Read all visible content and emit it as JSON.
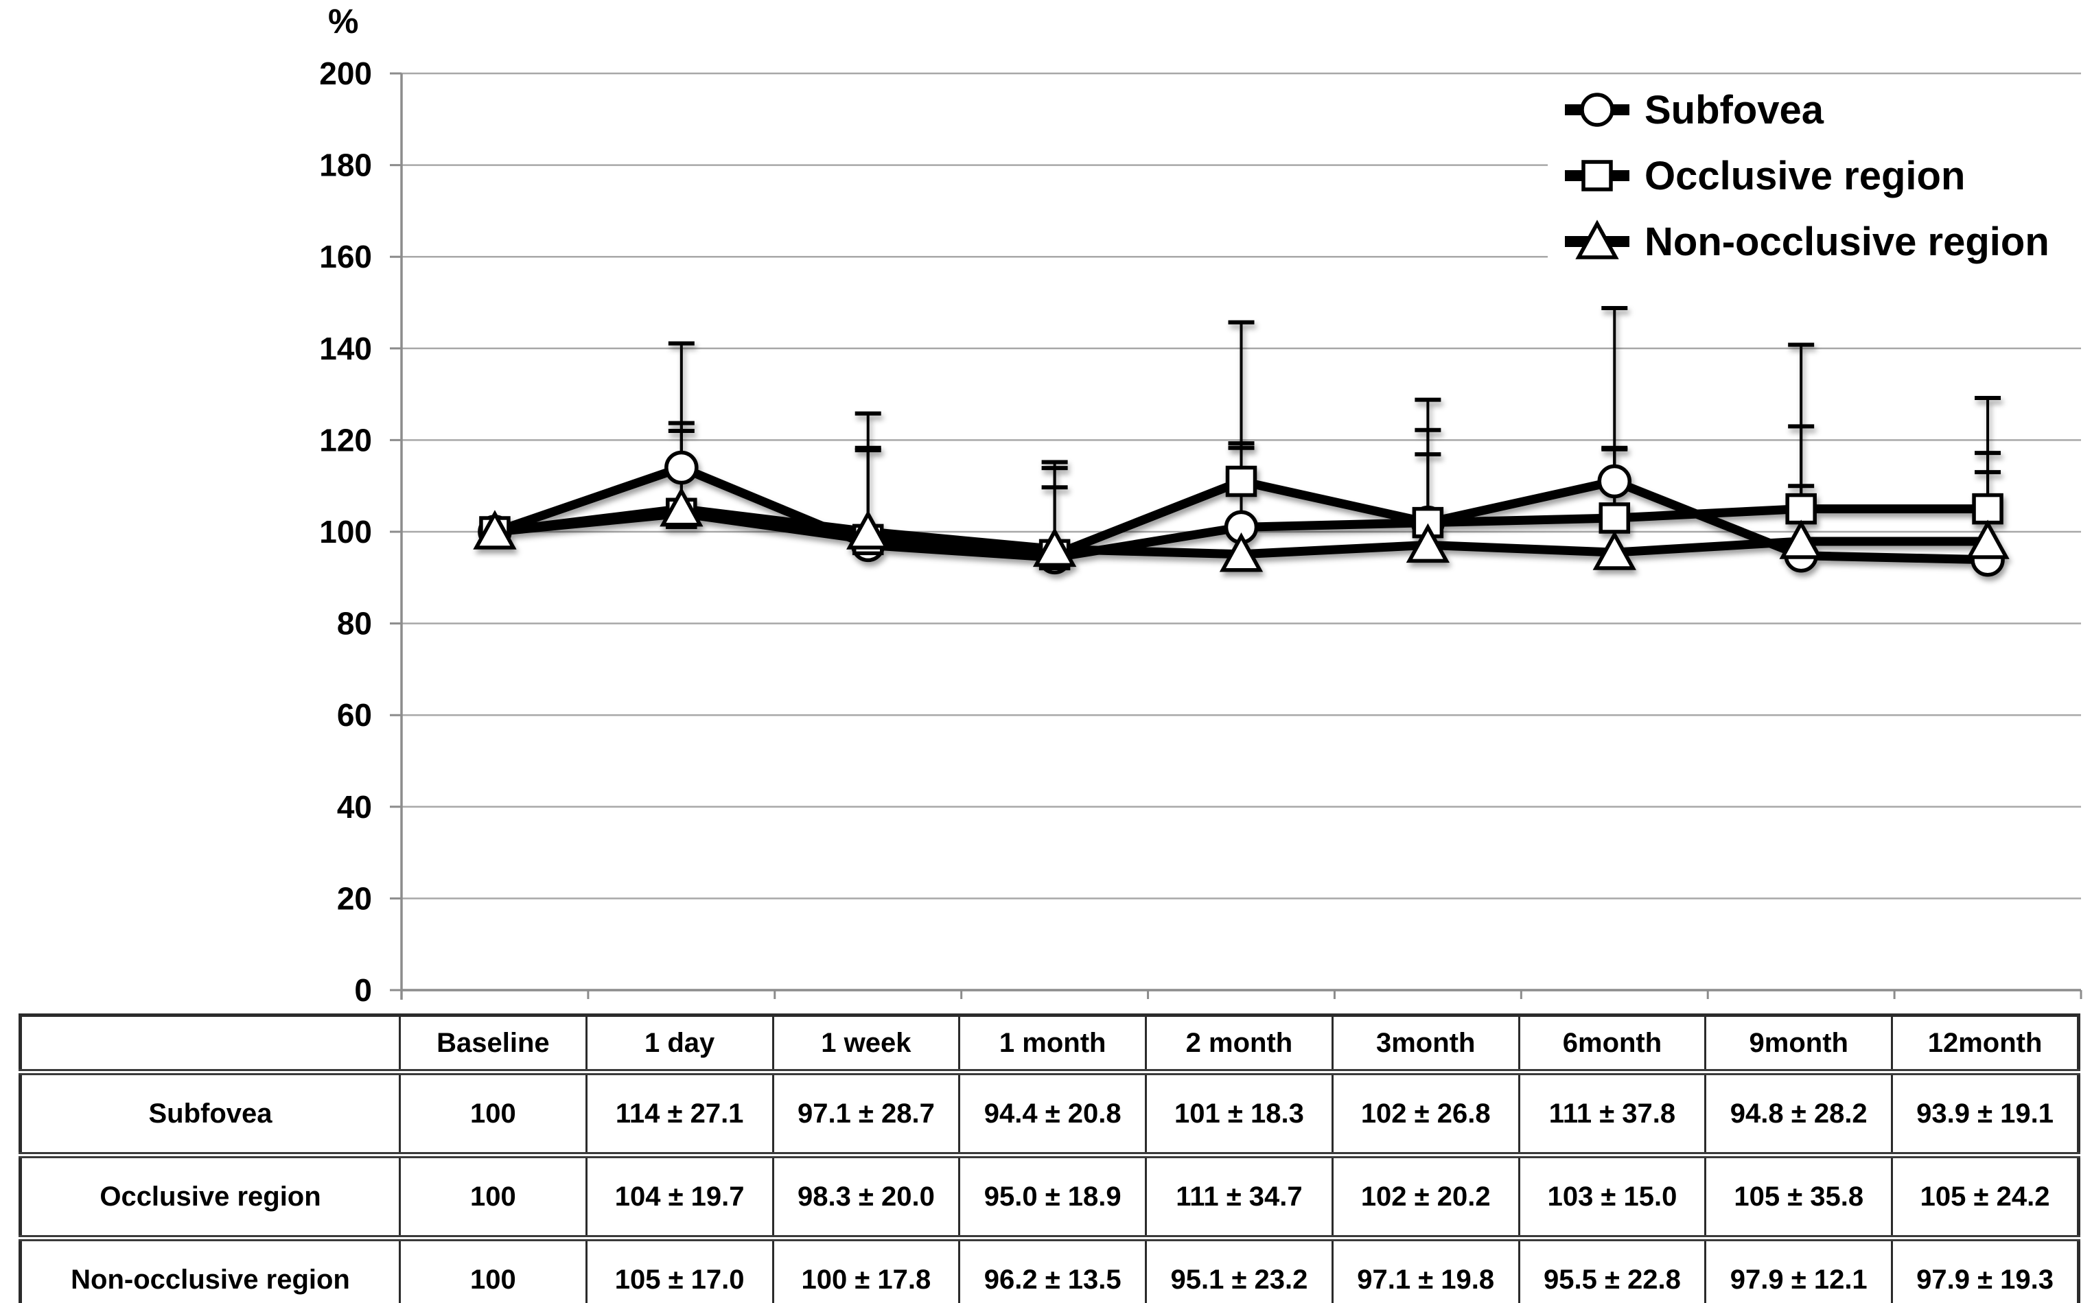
{
  "colors": {
    "background": "#ffffff",
    "line": "#000000",
    "marker_fill": "#ffffff",
    "grid": "#a8a8a8",
    "axis": "#8c8c8c",
    "text": "#000000"
  },
  "chart_data": {
    "type": "line",
    "title": "",
    "xlabel": "",
    "ylabel": "%",
    "ylim": [
      0,
      200
    ],
    "ytick_step": 20,
    "yticks": [
      0,
      20,
      40,
      60,
      80,
      100,
      120,
      140,
      160,
      180,
      200
    ],
    "grid": true,
    "error_bars": "upward, mean + SD, with caps",
    "legend_position": "top-right",
    "categories": [
      "Baseline",
      "1 day",
      "1 week",
      "1 month",
      "2 month",
      "3month",
      "6month",
      "9month",
      "12month"
    ],
    "series": [
      {
        "name": "Subfovea",
        "marker": "circle",
        "values": [
          100,
          114,
          97.1,
          94.4,
          101,
          102,
          111,
          94.8,
          93.9
        ],
        "sd": [
          0,
          27.1,
          28.7,
          20.8,
          18.3,
          26.8,
          37.8,
          28.2,
          19.1
        ]
      },
      {
        "name": "Occlusive region",
        "marker": "square",
        "values": [
          100,
          104,
          98.3,
          95.0,
          111,
          102,
          103,
          105,
          105
        ],
        "sd": [
          0,
          19.7,
          20.0,
          18.9,
          34.7,
          20.2,
          15.0,
          35.8,
          24.2
        ]
      },
      {
        "name": "Non-occlusive region",
        "marker": "triangle",
        "values": [
          100,
          105,
          100,
          96.2,
          95.1,
          97.1,
          95.5,
          97.9,
          97.9
        ],
        "sd": [
          0,
          17.0,
          17.8,
          13.5,
          23.2,
          19.8,
          22.8,
          12.1,
          19.3
        ]
      }
    ]
  },
  "table": {
    "columns": [
      "",
      "Baseline",
      "1 day",
      "1 week",
      "1 month",
      "2 month",
      "3month",
      "6month",
      "9month",
      "12month"
    ],
    "rows": [
      {
        "label": "Subfovea",
        "cells": [
          "100",
          "114 ± 27.1",
          "97.1 ± 28.7",
          "94.4 ± 20.8",
          "101 ± 18.3",
          "102 ± 26.8",
          "111 ± 37.8",
          "94.8 ± 28.2",
          "93.9 ± 19.1"
        ]
      },
      {
        "label": "Occlusive region",
        "cells": [
          "100",
          "104 ± 19.7",
          "98.3 ± 20.0",
          "95.0 ± 18.9",
          "111 ± 34.7",
          "102 ± 20.2",
          "103 ± 15.0",
          "105 ± 35.8",
          "105 ± 24.2"
        ]
      },
      {
        "label": "Non-occlusive region",
        "cells": [
          "100",
          "105 ± 17.0",
          "100 ± 17.8",
          "96.2 ± 13.5",
          "95.1 ± 23.2",
          "97.1 ± 19.8",
          "95.5 ± 22.8",
          "97.9 ± 12.1",
          "97.9 ± 19.3"
        ]
      }
    ]
  }
}
